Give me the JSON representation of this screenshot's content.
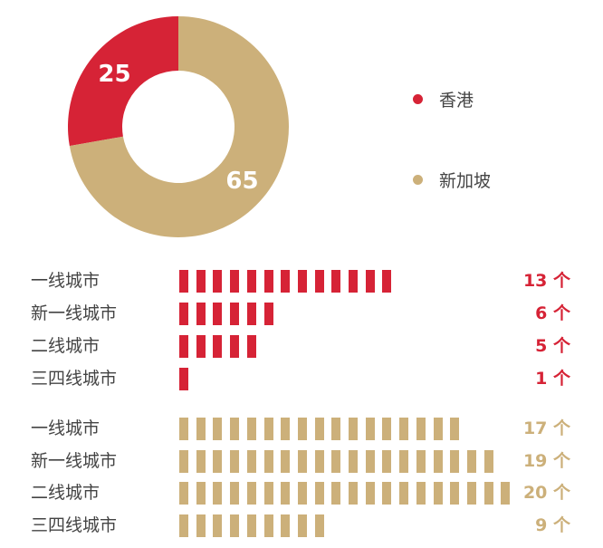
{
  "chart_data": [
    {
      "type": "pie",
      "donut": true,
      "slices": [
        {
          "name": "香港",
          "value": 25,
          "color": "#d62336"
        },
        {
          "name": "新加坡",
          "value": 65,
          "color": "#ccb07a"
        }
      ],
      "legend_position": "right"
    },
    {
      "type": "bar",
      "orientation": "horizontal",
      "style": "unit-pictogram",
      "groups": [
        {
          "name": "香港",
          "color": "#d62336",
          "unit": "个",
          "categories": [
            "一线城市",
            "新一线城市",
            "二线城市",
            "三四线城市"
          ],
          "values": [
            13,
            6,
            5,
            1
          ],
          "labels": [
            "13 个",
            "6 个",
            "5 个",
            "1 个"
          ]
        },
        {
          "name": "新加坡",
          "color": "#ccb07a",
          "unit": "个",
          "categories": [
            "一线城市",
            "新一线城市",
            "二线城市",
            "三四线城市"
          ],
          "values": [
            17,
            19,
            20,
            9
          ],
          "labels": [
            "17 个",
            "19 个",
            "20 个",
            "9 个"
          ]
        }
      ]
    }
  ]
}
